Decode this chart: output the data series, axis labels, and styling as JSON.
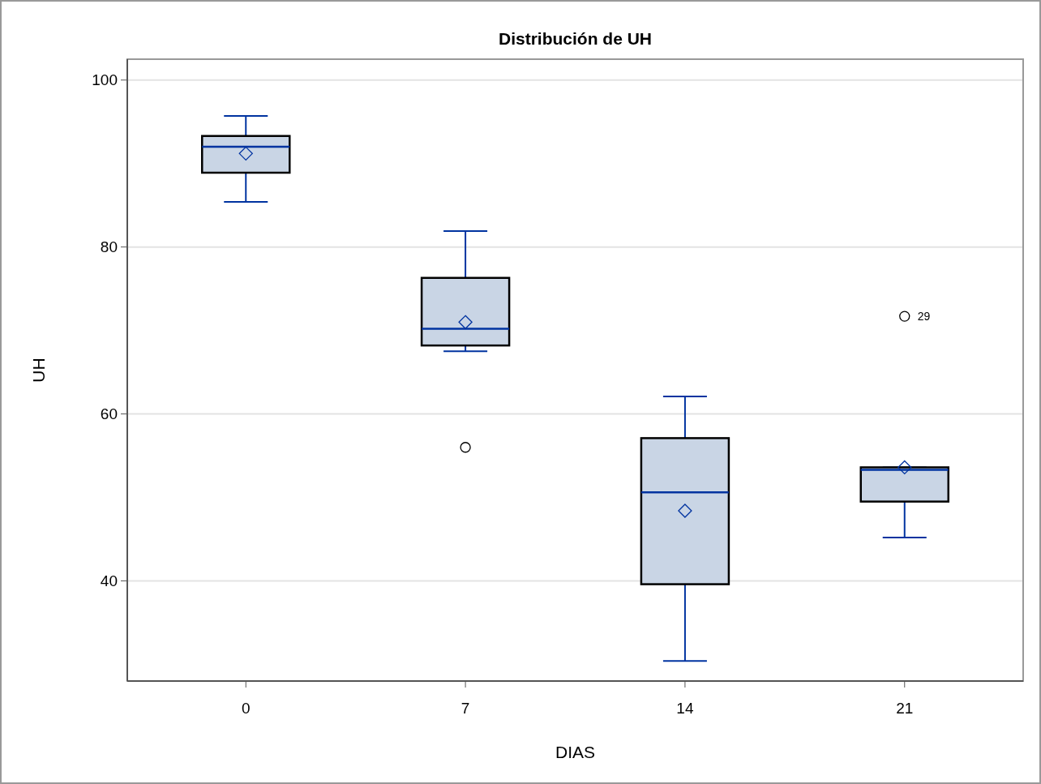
{
  "chart_data": {
    "type": "box",
    "title": "Distribución de UH",
    "xlabel": "DIAS",
    "ylabel": "UH",
    "categories": [
      "0",
      "7",
      "14",
      "21"
    ],
    "color": "#c9d5e5",
    "boxes": [
      {
        "low": 85.4,
        "q1": 88.9,
        "median": 92.0,
        "q3": 93.3,
        "high": 95.7,
        "mean": 91.2
      },
      {
        "low": 67.5,
        "q1": 68.2,
        "median": 70.2,
        "q3": 76.3,
        "high": 81.9,
        "mean": 71.0,
        "outliers": [
          56.0
        ]
      },
      {
        "low": 30.4,
        "q1": 39.6,
        "median": 50.6,
        "q3": 57.1,
        "high": 62.1,
        "mean": 48.4
      },
      {
        "low": 45.2,
        "q1": 49.5,
        "median": 53.3,
        "q3": 53.6,
        "high": 53.6,
        "mean": 53.6,
        "outliers": [
          71.7
        ]
      }
    ],
    "ylim": [
      28,
      102.5
    ],
    "yticks": [
      40,
      60,
      80,
      100
    ],
    "grid": "y",
    "annotations": [
      "29"
    ]
  }
}
